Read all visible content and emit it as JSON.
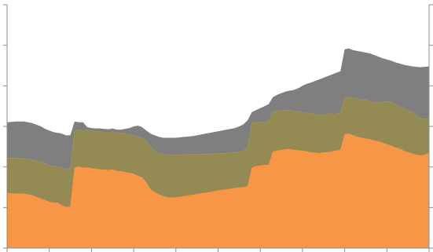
{
  "chart_data": {
    "type": "area",
    "stacked": true,
    "title": "",
    "xlabel": "",
    "ylabel": "",
    "x_tick_count": 10,
    "y_tick_count": 6,
    "ylim": [
      0,
      6
    ],
    "grid": false,
    "legend": "none",
    "x": [
      0,
      2,
      4,
      6,
      8,
      9,
      10,
      11,
      12,
      13,
      14,
      15,
      16,
      17,
      18,
      19,
      20,
      21,
      22,
      23,
      24,
      25,
      26,
      27,
      28,
      29,
      30,
      31,
      32,
      33,
      34,
      35,
      36,
      37,
      38,
      39,
      40,
      41,
      42,
      43,
      44,
      45,
      46,
      47,
      48,
      49,
      50,
      51,
      52,
      53,
      54,
      55,
      56,
      57,
      58,
      59,
      60,
      61,
      62,
      63,
      64,
      65,
      66,
      67,
      68,
      69,
      70,
      71,
      72,
      73,
      74,
      75,
      76,
      77,
      78,
      79,
      80,
      81,
      82,
      83,
      84,
      85,
      86,
      87,
      88,
      89,
      90,
      91,
      92,
      93,
      94,
      95,
      96,
      97,
      98,
      99,
      100
    ],
    "series": [
      {
        "name": "",
        "color": "#f79646",
        "values": [
          1.36,
          1.34,
          1.34,
          1.3,
          1.22,
          1.18,
          1.14,
          1.12,
          1.12,
          1.05,
          1.01,
          1.02,
          1.98,
          2.01,
          1.98,
          1.99,
          1.97,
          1.95,
          1.94,
          1.93,
          1.92,
          1.94,
          1.9,
          1.89,
          1.87,
          1.85,
          1.83,
          1.78,
          1.74,
          1.62,
          1.45,
          1.38,
          1.32,
          1.28,
          1.25,
          1.24,
          1.25,
          1.26,
          1.28,
          1.3,
          1.31,
          1.33,
          1.35,
          1.36,
          1.38,
          1.4,
          1.42,
          1.43,
          1.45,
          1.46,
          1.48,
          1.49,
          1.5,
          1.52,
          1.98,
          2.02,
          2.03,
          2.05,
          2.05,
          2.38,
          2.4,
          2.42,
          2.43,
          2.44,
          2.42,
          2.41,
          2.4,
          2.38,
          2.36,
          2.35,
          2.34,
          2.36,
          2.36,
          2.38,
          2.4,
          2.42,
          2.8,
          2.82,
          2.78,
          2.74,
          2.72,
          2.7,
          2.68,
          2.65,
          2.63,
          2.6,
          2.56,
          2.52,
          2.48,
          2.45,
          2.4,
          2.36,
          2.33,
          2.3,
          2.28,
          2.3,
          2.35
        ],
        "cumulative": [
          1.36,
          1.34,
          1.34,
          1.3,
          1.22,
          1.18,
          1.14,
          1.12,
          1.12,
          1.05,
          1.01,
          1.02,
          1.98,
          2.01,
          1.98,
          1.99,
          1.97,
          1.95,
          1.94,
          1.93,
          1.92,
          1.94,
          1.9,
          1.89,
          1.87,
          1.85,
          1.83,
          1.78,
          1.74,
          1.62,
          1.45,
          1.38,
          1.32,
          1.28,
          1.25,
          1.24,
          1.25,
          1.26,
          1.28,
          1.3,
          1.31,
          1.33,
          1.35,
          1.36,
          1.38,
          1.4,
          1.42,
          1.43,
          1.45,
          1.46,
          1.48,
          1.49,
          1.5,
          1.52,
          1.98,
          2.02,
          2.03,
          2.05,
          2.05,
          2.38,
          2.4,
          2.42,
          2.43,
          2.44,
          2.42,
          2.41,
          2.4,
          2.38,
          2.36,
          2.35,
          2.34,
          2.36,
          2.36,
          2.38,
          2.4,
          2.42,
          2.8,
          2.82,
          2.78,
          2.74,
          2.72,
          2.7,
          2.68,
          2.65,
          2.63,
          2.6,
          2.56,
          2.52,
          2.48,
          2.45,
          2.4,
          2.36,
          2.33,
          2.3,
          2.28,
          2.3,
          2.35
        ]
      },
      {
        "name": "",
        "color": "#948a54",
        "cumulative": [
          2.22,
          2.22,
          2.2,
          2.18,
          2.12,
          2.08,
          2.04,
          2.02,
          2.0,
          1.98,
          1.95,
          1.94,
          2.88,
          2.92,
          2.9,
          2.91,
          2.9,
          2.88,
          2.87,
          2.86,
          2.85,
          2.87,
          2.84,
          2.84,
          2.82,
          2.8,
          2.78,
          2.74,
          2.72,
          2.64,
          2.5,
          2.4,
          2.34,
          2.32,
          2.3,
          2.29,
          2.29,
          2.3,
          2.3,
          2.31,
          2.31,
          2.31,
          2.32,
          2.32,
          2.32,
          2.33,
          2.33,
          2.34,
          2.34,
          2.35,
          2.36,
          2.37,
          2.4,
          2.48,
          3.08,
          3.1,
          3.11,
          3.1,
          3.12,
          3.36,
          3.38,
          3.39,
          3.4,
          3.4,
          3.38,
          3.37,
          3.35,
          3.33,
          3.32,
          3.3,
          3.28,
          3.3,
          3.3,
          3.32,
          3.32,
          3.33,
          3.7,
          3.72,
          3.7,
          3.68,
          3.66,
          3.65,
          3.62,
          3.6,
          3.58,
          3.6,
          3.62,
          3.6,
          3.55,
          3.5,
          3.45,
          3.4,
          3.35,
          3.28,
          3.2,
          3.18,
          3.22
        ]
      },
      {
        "name": "",
        "color": "#7f7f7f",
        "cumulative": [
          3.1,
          3.12,
          3.12,
          3.08,
          3.0,
          2.94,
          2.9,
          2.86,
          2.84,
          2.82,
          2.78,
          2.78,
          3.12,
          3.1,
          3.1,
          2.98,
          2.96,
          2.95,
          2.95,
          2.94,
          2.93,
          2.95,
          2.92,
          2.92,
          2.94,
          2.96,
          3.0,
          3.02,
          2.98,
          2.9,
          2.82,
          2.78,
          2.74,
          2.72,
          2.72,
          2.72,
          2.72,
          2.73,
          2.74,
          2.75,
          2.76,
          2.78,
          2.8,
          2.82,
          2.84,
          2.86,
          2.88,
          2.9,
          2.92,
          2.94,
          2.96,
          3.0,
          3.05,
          3.15,
          3.35,
          3.4,
          3.45,
          3.5,
          3.55,
          3.72,
          3.78,
          3.82,
          3.86,
          3.88,
          3.9,
          3.94,
          4.0,
          4.05,
          4.08,
          4.12,
          4.16,
          4.2,
          4.24,
          4.28,
          4.32,
          4.36,
          4.9,
          4.92,
          4.88,
          4.86,
          4.84,
          4.82,
          4.8,
          4.76,
          4.72,
          4.68,
          4.65,
          4.62,
          4.58,
          4.55,
          4.52,
          4.5,
          4.48,
          4.47,
          4.46,
          4.47,
          4.48
        ]
      }
    ]
  }
}
